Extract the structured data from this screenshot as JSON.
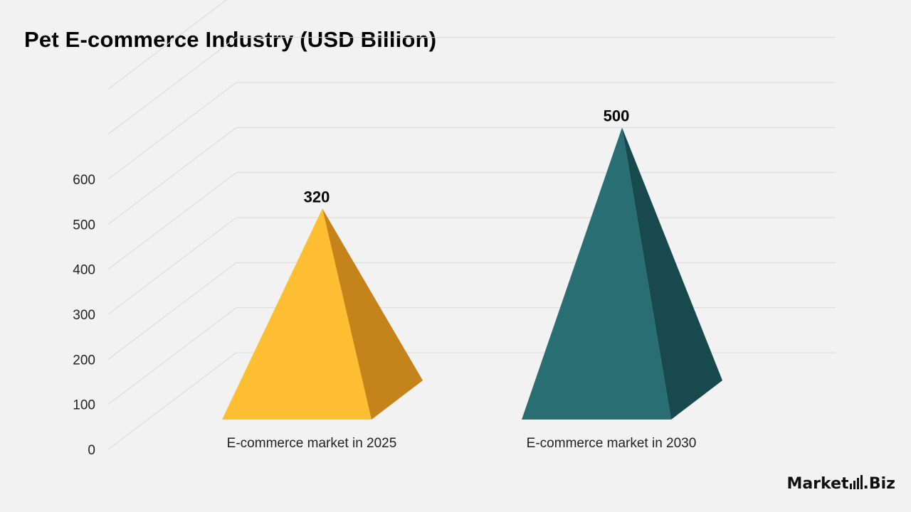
{
  "title": "Pet E-commerce Industry (USD Billion)",
  "logo": {
    "left": "Market",
    "right": "Biz"
  },
  "colors": {
    "gold": "#fdbf31",
    "gold_dark": "#c5831b",
    "teal": "#296e72",
    "teal_dark": "#17494d",
    "grid": "#d9d9d9"
  },
  "chart_data": {
    "type": "bar",
    "style": "3d-pyramid",
    "title": "Pet E-commerce Industry (USD Billion)",
    "categories": [
      "E-commerce market in 2025",
      "E-commerce market in 2030"
    ],
    "values": [
      320,
      500
    ],
    "data_labels": [
      "320",
      "500"
    ],
    "ylim": [
      0,
      600
    ],
    "yticks": [
      "0",
      "100",
      "200",
      "300",
      "400",
      "500",
      "600"
    ],
    "grid": true,
    "legend": "none"
  }
}
